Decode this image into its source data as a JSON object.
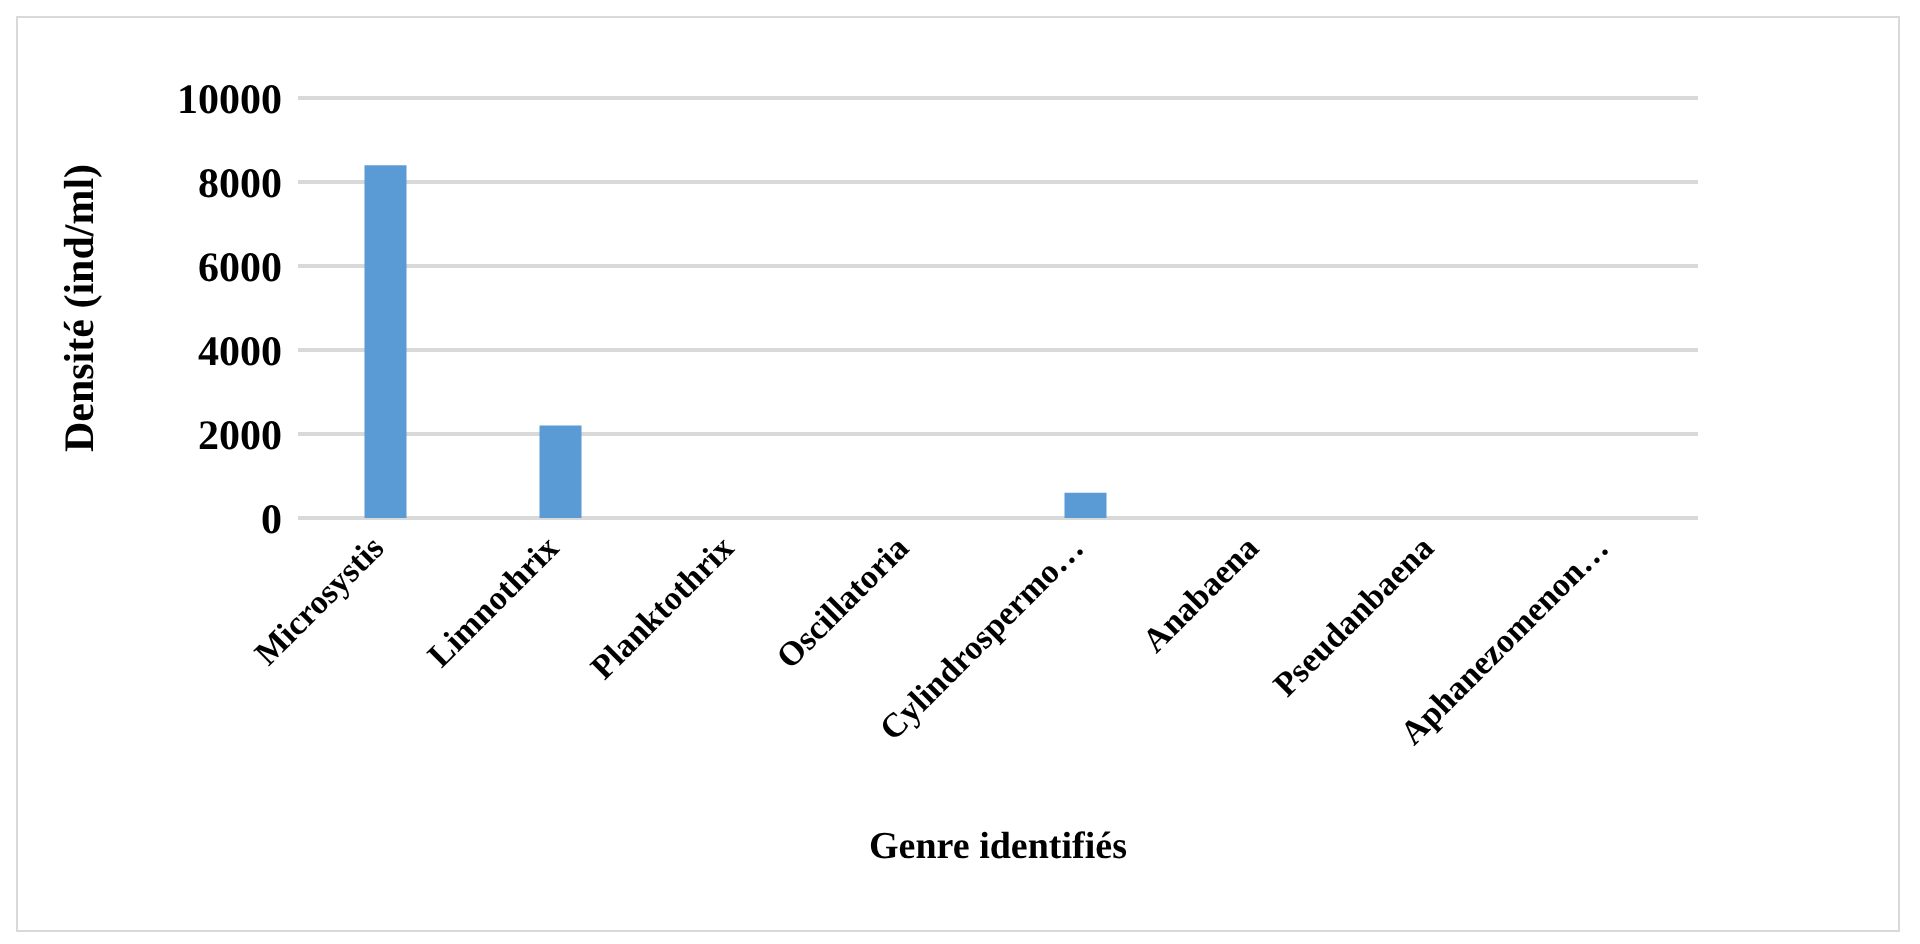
{
  "chart_data": {
    "type": "bar",
    "xlabel": "Genre identifiés",
    "ylabel": "Densité (ind/ml)",
    "categories": [
      "Microsystis",
      "Limnothrix",
      "Planktothrix",
      "Oscillatoria",
      "Cylindrospermo…",
      "Anabaena",
      "Pseudanbaena",
      "Aphanezomenon…"
    ],
    "values": [
      8400,
      2200,
      0,
      0,
      600,
      0,
      0,
      0
    ],
    "color": "#5b9bd5",
    "ylim": [
      0,
      10000
    ],
    "yticks": [
      0,
      2000,
      4000,
      6000,
      8000,
      10000
    ],
    "grid": "y"
  }
}
